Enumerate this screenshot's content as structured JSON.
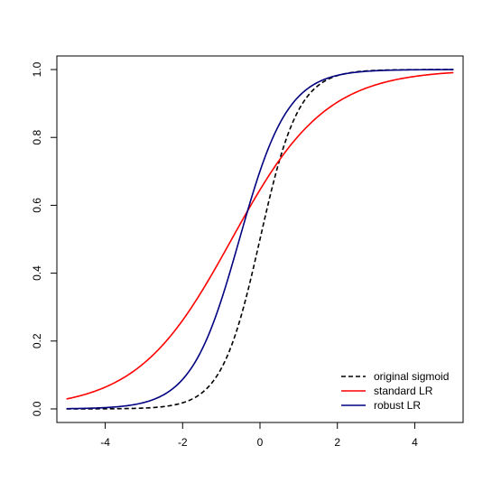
{
  "chart_data": {
    "type": "line",
    "title": "",
    "xlabel": "",
    "ylabel": "",
    "xlim": [
      -5.25,
      5.25
    ],
    "ylim": [
      -0.04,
      1.04
    ],
    "x_ticks": [
      -4,
      -2,
      0,
      2,
      4
    ],
    "x_tick_labels": [
      "-4",
      "-2",
      "0",
      "2",
      "4"
    ],
    "y_ticks": [
      0.0,
      0.2,
      0.4,
      0.6,
      0.8,
      1.0
    ],
    "y_tick_labels": [
      "0.0",
      "0.2",
      "0.4",
      "0.6",
      "0.8",
      "1.0"
    ],
    "grid": false,
    "legend_position": "bottom-right",
    "x_domain": [
      -5,
      5
    ],
    "series": [
      {
        "name": "original sigmoid",
        "color": "#000000",
        "dash": "dashed",
        "function": "logistic",
        "intercept": 0.0,
        "slope": 2.0
      },
      {
        "name": "standard LR",
        "color": "#ff0000",
        "dash": "solid",
        "function": "logistic",
        "intercept": 0.6,
        "slope": 0.82
      },
      {
        "name": "robust LR",
        "color": "#000080",
        "dash": "solid",
        "function": "logistic",
        "intercept": 0.85,
        "slope": 1.6
      }
    ]
  }
}
